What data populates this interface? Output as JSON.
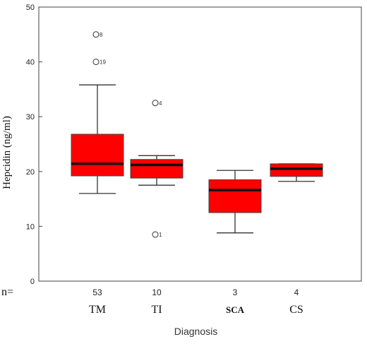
{
  "chart_data": {
    "type": "box",
    "ylabel": "Hepcidin (ng/ml)",
    "xlabel": "Diagnosis",
    "ylim": [
      0,
      50
    ],
    "yticks": [
      0,
      10,
      20,
      30,
      40,
      50
    ],
    "n_prefix": "n=",
    "box_color": "#ff0000",
    "groups": [
      {
        "category": "TM",
        "n": "53",
        "whisker_low": 16,
        "q1": 19.2,
        "median": 21.4,
        "q3": 26.8,
        "whisker_high": 35.8,
        "outliers": [
          {
            "value": 45,
            "label": "8"
          },
          {
            "value": 40,
            "label": "19"
          }
        ]
      },
      {
        "category": "TI",
        "n": "10",
        "whisker_low": 17.5,
        "q1": 18.8,
        "median": 21.2,
        "q3": 22.2,
        "whisker_high": 22.9,
        "outliers": [
          {
            "value": 32.5,
            "label": "4"
          },
          {
            "value": 8.5,
            "label": "1"
          }
        ]
      },
      {
        "category": "SCA",
        "n": "3",
        "whisker_low": 8.8,
        "q1": 12.5,
        "median": 16.6,
        "q3": 18.5,
        "whisker_high": 20.2,
        "outliers": []
      },
      {
        "category": "CS",
        "n": "4",
        "whisker_low": 18.2,
        "q1": 19.1,
        "median": 20.5,
        "q3": 21.4,
        "whisker_high": 21.4,
        "outliers": []
      }
    ]
  }
}
